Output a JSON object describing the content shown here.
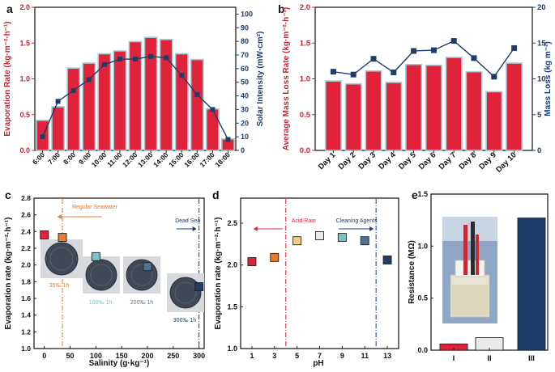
{
  "colors": {
    "red": "#e0233a",
    "navy": "#1f3d6b",
    "red_text": "#d11f2f",
    "navy_text": "#1f3d6b",
    "bar_edge": "#9ccfd6",
    "orange": "#e67a2e",
    "teal": "#7fc2c6",
    "steel": "#4a7596",
    "yellow": "#f3d180",
    "light": "#eaeaea"
  },
  "chart_data": [
    {
      "panel": "a",
      "type": "bar+line",
      "categories": [
        "6:00",
        "7:00",
        "8:00",
        "9:00",
        "10:00",
        "11:00",
        "12:00",
        "13:00",
        "14:00",
        "15:00",
        "16:00",
        "17:00",
        "18:00"
      ],
      "series": [
        {
          "name": "Evaporation Rate",
          "axis": "left",
          "type": "bar",
          "values": [
            0.42,
            0.61,
            1.15,
            1.22,
            1.35,
            1.39,
            1.52,
            1.58,
            1.55,
            1.35,
            1.27,
            0.58,
            0.16
          ]
        },
        {
          "name": "Solar Intensity",
          "axis": "right",
          "type": "line",
          "values": [
            10,
            36,
            44,
            52,
            63,
            67,
            67,
            69,
            68,
            55,
            41,
            30,
            8
          ]
        }
      ],
      "ylabel": "Evaporation Rate (kg·m⁻²·h⁻¹)",
      "y2label": "Solar Intensity (mW·cm²)",
      "ylim": [
        0,
        2.0
      ],
      "y2lim": [
        0,
        105
      ],
      "yticks": [
        "0.0",
        "0.5",
        "1.0",
        "1.5",
        "2.0"
      ],
      "y2ticks": [
        "0",
        "10",
        "20",
        "30",
        "40",
        "50",
        "60",
        "70",
        "80",
        "90",
        "100"
      ]
    },
    {
      "panel": "b",
      "type": "bar+line",
      "categories": [
        "Day 1",
        "Day 2",
        "Day 3",
        "Day 4",
        "Day 5",
        "Day 6",
        "Day 7",
        "Day 8",
        "Day 9",
        "Day 10"
      ],
      "series": [
        {
          "name": "Average Mass Loss Rate",
          "axis": "left",
          "type": "bar",
          "values": [
            0.97,
            0.93,
            1.11,
            0.95,
            1.2,
            1.19,
            1.3,
            1.1,
            0.82,
            1.22
          ]
        },
        {
          "name": "Mass Loss",
          "axis": "right",
          "type": "line",
          "values": [
            11.0,
            10.6,
            12.8,
            10.9,
            13.9,
            14.0,
            15.3,
            12.9,
            10.3,
            14.3
          ]
        }
      ],
      "ylabel": "Average Mass Loss Rate (kg·m⁻²·h⁻¹)",
      "y2label": "Mass Loss (kg m⁻²)",
      "ylim": [
        0,
        2.0
      ],
      "y2lim": [
        0,
        20
      ],
      "yticks": [
        "0.0",
        "0.5",
        "1.0",
        "1.5",
        "2.0"
      ],
      "y2ticks": [
        "0",
        "5",
        "10",
        "15",
        "20"
      ]
    },
    {
      "panel": "c",
      "type": "scatter",
      "xlabel": "Salinity (g·kg⁻¹)",
      "ylabel": "Evaporation rate (kg·m⁻²·h⁻¹)",
      "xlim": [
        -20,
        310
      ],
      "ylim": [
        1.0,
        2.8
      ],
      "xticks": [
        "0",
        "50",
        "100",
        "150",
        "200",
        "250",
        "300"
      ],
      "yticks": [
        "1.0",
        "1.2",
        "1.4",
        "1.6",
        "1.8",
        "2.0",
        "2.2",
        "2.4",
        "2.6",
        "2.8"
      ],
      "points": [
        {
          "x": 0,
          "y": 2.36,
          "color": "red"
        },
        {
          "x": 35,
          "y": 2.33,
          "color": "orange"
        },
        {
          "x": 100,
          "y": 2.1,
          "color": "teal"
        },
        {
          "x": 200,
          "y": 1.98,
          "color": "steel"
        },
        {
          "x": 300,
          "y": 1.74,
          "color": "navy"
        }
      ],
      "annotations": [
        {
          "text": "Regular Seawater",
          "color": "orange"
        },
        {
          "text": "Dead Sea",
          "color": "navy"
        },
        {
          "text": "35‰ 1h",
          "color": "orange"
        },
        {
          "text": "100‰ 1h",
          "color": "teal"
        },
        {
          "text": "200‰ 1h",
          "color": "steel"
        },
        {
          "text": "300‰ 1h",
          "color": "navy"
        }
      ],
      "vlines": [
        {
          "x": 35,
          "color": "orange"
        },
        {
          "x": 300,
          "color": "navy"
        }
      ]
    },
    {
      "panel": "d",
      "type": "scatter",
      "xlabel": "pH",
      "ylabel": "Evaporation rate (kg·m⁻²·h⁻¹)",
      "xlim": [
        0,
        14
      ],
      "ylim": [
        1.0,
        2.8
      ],
      "xticks": [
        "1",
        "3",
        "5",
        "7",
        "9",
        "11",
        "13"
      ],
      "yticks": [
        "1.0",
        "1.5",
        "2.0",
        "2.5"
      ],
      "points": [
        {
          "x": 1,
          "y": 2.04,
          "color": "red"
        },
        {
          "x": 3,
          "y": 2.09,
          "color": "orange"
        },
        {
          "x": 5,
          "y": 2.29,
          "color": "yellow"
        },
        {
          "x": 7,
          "y": 2.35,
          "color": "light"
        },
        {
          "x": 9,
          "y": 2.33,
          "color": "teal"
        },
        {
          "x": 11,
          "y": 2.29,
          "color": "steel"
        },
        {
          "x": 13,
          "y": 2.06,
          "color": "navy"
        }
      ],
      "annotations": [
        {
          "text": "Acid Rain",
          "color": "red"
        },
        {
          "text": "Cleaning Agents",
          "color": "navy"
        }
      ],
      "vlines": [
        {
          "x": 4,
          "color": "red"
        },
        {
          "x": 12,
          "color": "navy"
        }
      ]
    },
    {
      "panel": "e",
      "type": "bar",
      "categories": [
        "I",
        "II",
        "III"
      ],
      "values": [
        0.06,
        0.12,
        1.27
      ],
      "ylabel": "Resistance (MΩ)",
      "ylim": [
        0,
        1.5
      ],
      "yticks": [
        "0.0",
        "0.5",
        "1.0",
        "1.5"
      ],
      "colors": [
        "red",
        "light",
        "navy"
      ]
    }
  ],
  "panel_labels": [
    "a",
    "b",
    "c",
    "d",
    "e"
  ]
}
